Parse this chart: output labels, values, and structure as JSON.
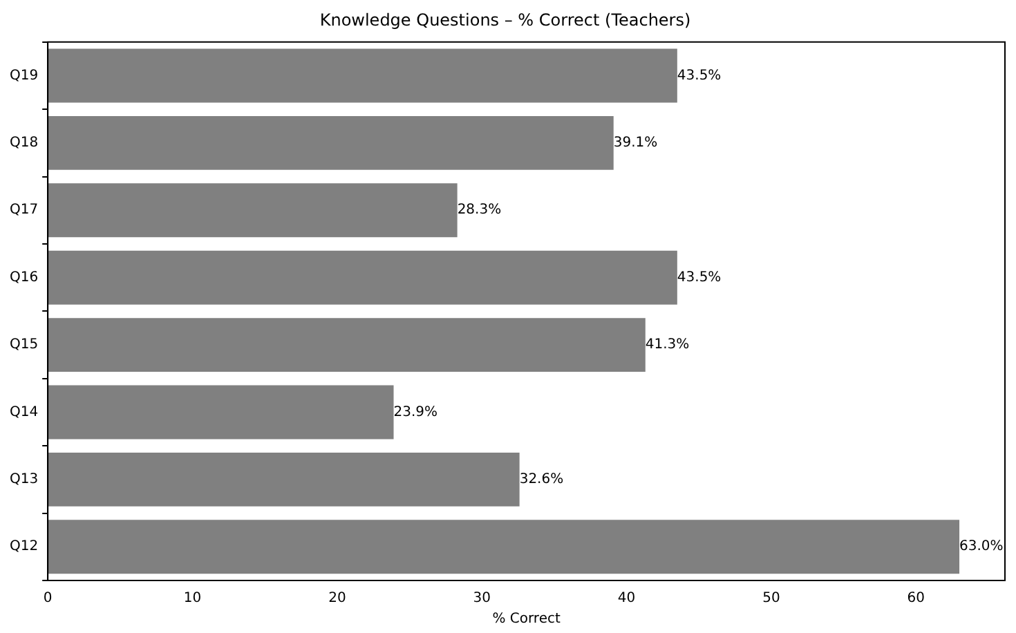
{
  "chart_data": {
    "type": "bar",
    "orientation": "horizontal",
    "title": "Knowledge Questions – % Correct (Teachers)",
    "xlabel": "% Correct",
    "categories": [
      "Q19",
      "Q18",
      "Q17",
      "Q16",
      "Q15",
      "Q14",
      "Q13",
      "Q12"
    ],
    "values": [
      43.5,
      39.1,
      28.3,
      43.5,
      41.3,
      23.9,
      32.6,
      63.0
    ],
    "value_labels": [
      "43.5%",
      "39.1%",
      "28.3%",
      "43.5%",
      "41.3%",
      "23.9%",
      "32.6%",
      "63.0%"
    ],
    "color": "#808080",
    "xlim": [
      0,
      66.15
    ],
    "xticks": [
      0,
      10,
      20,
      30,
      40,
      50,
      60
    ],
    "grid": false,
    "legend": false
  }
}
